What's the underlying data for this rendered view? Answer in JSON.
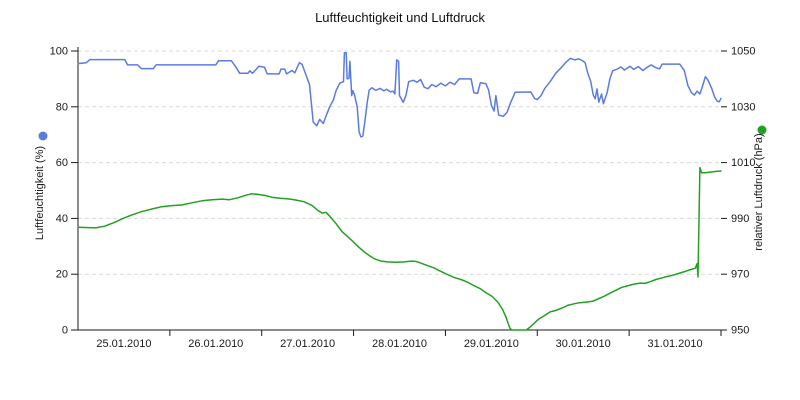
{
  "title": "Luftfeuchtigkeit und Luftdruck",
  "chart_data": {
    "type": "line",
    "title": "Luftfeuchtigkeit und Luftdruck",
    "grid": "horizontal-dashed",
    "legend_position": "axis-title-dots",
    "colors": {
      "humidity": "#5b7be0",
      "pressure": "#21a121",
      "gridline": "#d9d9d9",
      "axis": "#1a1a1a",
      "background": "#ffffff"
    },
    "x_axis": {
      "tick_labels": [
        "25.01.2010",
        "26.01.2010",
        "27.01.2010",
        "28.01.2010",
        "29.01.2010",
        "30.01.2010",
        "31.01.2010"
      ],
      "range_days": [
        0,
        7
      ]
    },
    "left_axis": {
      "label": "Luftfeuchtigkeit (%)",
      "ticks": [
        0,
        20,
        40,
        60,
        80,
        100
      ],
      "range": [
        0,
        100
      ],
      "color": "#5b7be0"
    },
    "right_axis": {
      "label": "relativer Luftdruck (hPa)",
      "ticks": [
        950,
        970,
        990,
        1010,
        1030,
        1050
      ],
      "range": [
        950,
        1050
      ],
      "color": "#21a121"
    },
    "series": [
      {
        "name": "Luftfeuchtigkeit (%)",
        "axis": "left",
        "unit": "%",
        "color": "#5b7be0",
        "points": [
          [
            0.0,
            95.5
          ],
          [
            0.09,
            95.8
          ],
          [
            0.13,
            96.9
          ],
          [
            0.51,
            96.9
          ],
          [
            0.54,
            95.0
          ],
          [
            0.65,
            95.0
          ],
          [
            0.69,
            93.7
          ],
          [
            0.82,
            93.7
          ],
          [
            0.85,
            95.0
          ],
          [
            1.5,
            95.0
          ],
          [
            1.53,
            96.5
          ],
          [
            1.67,
            96.5
          ],
          [
            1.72,
            94.2
          ],
          [
            1.76,
            92.0
          ],
          [
            1.85,
            92.0
          ],
          [
            1.87,
            92.9
          ],
          [
            1.9,
            92.0
          ],
          [
            1.97,
            94.5
          ],
          [
            2.03,
            94.2
          ],
          [
            2.06,
            91.8
          ],
          [
            2.19,
            91.8
          ],
          [
            2.21,
            93.5
          ],
          [
            2.25,
            93.5
          ],
          [
            2.27,
            91.8
          ],
          [
            2.33,
            93.0
          ],
          [
            2.36,
            92.2
          ],
          [
            2.41,
            95.8
          ],
          [
            2.44,
            95.2
          ],
          [
            2.52,
            88.0
          ],
          [
            2.56,
            74.5
          ],
          [
            2.6,
            73.2
          ],
          [
            2.63,
            75.5
          ],
          [
            2.67,
            74.0
          ],
          [
            2.71,
            77.5
          ],
          [
            2.74,
            80.0
          ],
          [
            2.78,
            82.5
          ],
          [
            2.81,
            85.8
          ],
          [
            2.85,
            88.5
          ],
          [
            2.89,
            89.0
          ],
          [
            2.9,
            99.4
          ],
          [
            2.92,
            99.4
          ],
          [
            2.93,
            90.0
          ],
          [
            2.95,
            90.2
          ],
          [
            2.96,
            96.3
          ],
          [
            2.98,
            84.0
          ],
          [
            2.99,
            85.8
          ],
          [
            3.01,
            84.3
          ],
          [
            3.04,
            80.0
          ],
          [
            3.06,
            71.0
          ],
          [
            3.08,
            69.2
          ],
          [
            3.1,
            69.5
          ],
          [
            3.12,
            74.0
          ],
          [
            3.15,
            82.0
          ],
          [
            3.17,
            86.0
          ],
          [
            3.2,
            86.8
          ],
          [
            3.24,
            85.9
          ],
          [
            3.29,
            86.6
          ],
          [
            3.33,
            85.7
          ],
          [
            3.36,
            86.3
          ],
          [
            3.4,
            85.4
          ],
          [
            3.43,
            85.6
          ],
          [
            3.45,
            84.6
          ],
          [
            3.47,
            96.8
          ],
          [
            3.49,
            96.3
          ],
          [
            3.5,
            84.0
          ],
          [
            3.54,
            81.6
          ],
          [
            3.57,
            84.0
          ],
          [
            3.6,
            89.0
          ],
          [
            3.65,
            89.5
          ],
          [
            3.69,
            88.8
          ],
          [
            3.73,
            89.8
          ],
          [
            3.77,
            87.0
          ],
          [
            3.81,
            86.5
          ],
          [
            3.85,
            88.0
          ],
          [
            3.9,
            87.2
          ],
          [
            3.95,
            88.5
          ],
          [
            4.0,
            87.5
          ],
          [
            4.05,
            88.8
          ],
          [
            4.1,
            88.0
          ],
          [
            4.15,
            90.0
          ],
          [
            4.28,
            90.0
          ],
          [
            4.31,
            85.0
          ],
          [
            4.35,
            84.8
          ],
          [
            4.38,
            88.6
          ],
          [
            4.44,
            88.3
          ],
          [
            4.47,
            86.0
          ],
          [
            4.5,
            80.5
          ],
          [
            4.53,
            78.5
          ],
          [
            4.55,
            84.0
          ],
          [
            4.58,
            77.0
          ],
          [
            4.63,
            76.6
          ],
          [
            4.67,
            78.0
          ],
          [
            4.71,
            81.5
          ],
          [
            4.76,
            85.2
          ],
          [
            4.93,
            85.3
          ],
          [
            4.97,
            83.0
          ],
          [
            5.0,
            82.6
          ],
          [
            5.04,
            84.0
          ],
          [
            5.08,
            86.5
          ],
          [
            5.14,
            89.0
          ],
          [
            5.2,
            92.0
          ],
          [
            5.26,
            94.0
          ],
          [
            5.31,
            95.9
          ],
          [
            5.36,
            97.4
          ],
          [
            5.41,
            96.8
          ],
          [
            5.45,
            97.2
          ],
          [
            5.49,
            96.6
          ],
          [
            5.52,
            95.8
          ],
          [
            5.55,
            92.0
          ],
          [
            5.58,
            89.3
          ],
          [
            5.61,
            84.2
          ],
          [
            5.63,
            82.9
          ],
          [
            5.65,
            86.4
          ],
          [
            5.67,
            81.7
          ],
          [
            5.7,
            84.6
          ],
          [
            5.72,
            81.1
          ],
          [
            5.76,
            85.0
          ],
          [
            5.79,
            90.0
          ],
          [
            5.82,
            92.9
          ],
          [
            5.87,
            93.5
          ],
          [
            5.91,
            94.3
          ],
          [
            5.95,
            93.2
          ],
          [
            6.01,
            94.5
          ],
          [
            6.05,
            93.4
          ],
          [
            6.1,
            94.4
          ],
          [
            6.15,
            93.0
          ],
          [
            6.19,
            94.0
          ],
          [
            6.24,
            95.0
          ],
          [
            6.29,
            94.0
          ],
          [
            6.33,
            93.6
          ],
          [
            6.36,
            95.3
          ],
          [
            6.55,
            95.3
          ],
          [
            6.6,
            93.0
          ],
          [
            6.64,
            87.6
          ],
          [
            6.68,
            85.0
          ],
          [
            6.71,
            84.2
          ],
          [
            6.74,
            85.6
          ],
          [
            6.77,
            84.6
          ],
          [
            6.8,
            87.5
          ],
          [
            6.83,
            90.8
          ],
          [
            6.86,
            89.5
          ],
          [
            6.9,
            86.5
          ],
          [
            6.93,
            83.5
          ],
          [
            6.96,
            82.0
          ],
          [
            6.98,
            81.8
          ],
          [
            7.0,
            83.0
          ]
        ]
      },
      {
        "name": "relativer Luftdruck (hPa)",
        "axis": "right",
        "unit": "hPa",
        "color": "#21a121",
        "points": [
          [
            0.0,
            986.8
          ],
          [
            0.19,
            986.6
          ],
          [
            0.29,
            987.2
          ],
          [
            0.4,
            988.6
          ],
          [
            0.49,
            990.0
          ],
          [
            0.59,
            991.3
          ],
          [
            0.69,
            992.4
          ],
          [
            0.81,
            993.4
          ],
          [
            0.91,
            994.2
          ],
          [
            1.02,
            994.6
          ],
          [
            1.13,
            994.8
          ],
          [
            1.24,
            995.6
          ],
          [
            1.35,
            996.3
          ],
          [
            1.46,
            996.7
          ],
          [
            1.57,
            996.9
          ],
          [
            1.65,
            996.7
          ],
          [
            1.74,
            997.4
          ],
          [
            1.83,
            998.3
          ],
          [
            1.89,
            998.8
          ],
          [
            1.96,
            998.6
          ],
          [
            2.04,
            998.2
          ],
          [
            2.11,
            997.6
          ],
          [
            2.2,
            997.2
          ],
          [
            2.29,
            997.0
          ],
          [
            2.37,
            996.6
          ],
          [
            2.46,
            996.0
          ],
          [
            2.55,
            994.6
          ],
          [
            2.61,
            992.9
          ],
          [
            2.66,
            991.9
          ],
          [
            2.7,
            992.2
          ],
          [
            2.74,
            990.8
          ],
          [
            2.81,
            988.1
          ],
          [
            2.87,
            985.4
          ],
          [
            2.94,
            983.3
          ],
          [
            3.0,
            981.5
          ],
          [
            3.06,
            979.6
          ],
          [
            3.12,
            977.9
          ],
          [
            3.18,
            976.5
          ],
          [
            3.23,
            975.5
          ],
          [
            3.3,
            974.7
          ],
          [
            3.37,
            974.4
          ],
          [
            3.46,
            974.3
          ],
          [
            3.55,
            974.4
          ],
          [
            3.63,
            974.7
          ],
          [
            3.68,
            974.6
          ],
          [
            3.74,
            973.9
          ],
          [
            3.81,
            973.0
          ],
          [
            3.88,
            972.2
          ],
          [
            3.94,
            971.2
          ],
          [
            4.02,
            969.9
          ],
          [
            4.09,
            968.9
          ],
          [
            4.17,
            968.1
          ],
          [
            4.25,
            967.0
          ],
          [
            4.31,
            965.9
          ],
          [
            4.38,
            964.8
          ],
          [
            4.44,
            963.4
          ],
          [
            4.51,
            962.0
          ],
          [
            4.57,
            960.0
          ],
          [
            4.62,
            957.5
          ],
          [
            4.66,
            954.5
          ],
          [
            4.7,
            950.8
          ],
          [
            4.72,
            950.0
          ],
          [
            4.88,
            950.0
          ],
          [
            4.92,
            951.0
          ],
          [
            4.97,
            952.5
          ],
          [
            5.01,
            953.8
          ],
          [
            5.07,
            955.0
          ],
          [
            5.14,
            956.5
          ],
          [
            5.2,
            957.0
          ],
          [
            5.27,
            957.9
          ],
          [
            5.33,
            958.8
          ],
          [
            5.4,
            959.4
          ],
          [
            5.46,
            959.8
          ],
          [
            5.53,
            960.0
          ],
          [
            5.6,
            960.3
          ],
          [
            5.66,
            961.1
          ],
          [
            5.73,
            962.1
          ],
          [
            5.79,
            963.2
          ],
          [
            5.86,
            964.3
          ],
          [
            5.92,
            965.3
          ],
          [
            5.99,
            965.9
          ],
          [
            6.05,
            966.4
          ],
          [
            6.12,
            966.8
          ],
          [
            6.17,
            966.7
          ],
          [
            6.23,
            967.3
          ],
          [
            6.29,
            968.1
          ],
          [
            6.36,
            968.7
          ],
          [
            6.42,
            969.2
          ],
          [
            6.49,
            969.8
          ],
          [
            6.55,
            970.4
          ],
          [
            6.62,
            971.1
          ],
          [
            6.67,
            971.7
          ],
          [
            6.72,
            972.1
          ],
          [
            6.74,
            973.8
          ],
          [
            6.75,
            969.0
          ],
          [
            6.77,
            1008.2
          ],
          [
            6.79,
            1006.3
          ],
          [
            6.84,
            1006.4
          ],
          [
            6.88,
            1006.6
          ],
          [
            6.92,
            1006.7
          ],
          [
            6.96,
            1006.9
          ],
          [
            7.0,
            1007.0
          ]
        ]
      }
    ]
  }
}
